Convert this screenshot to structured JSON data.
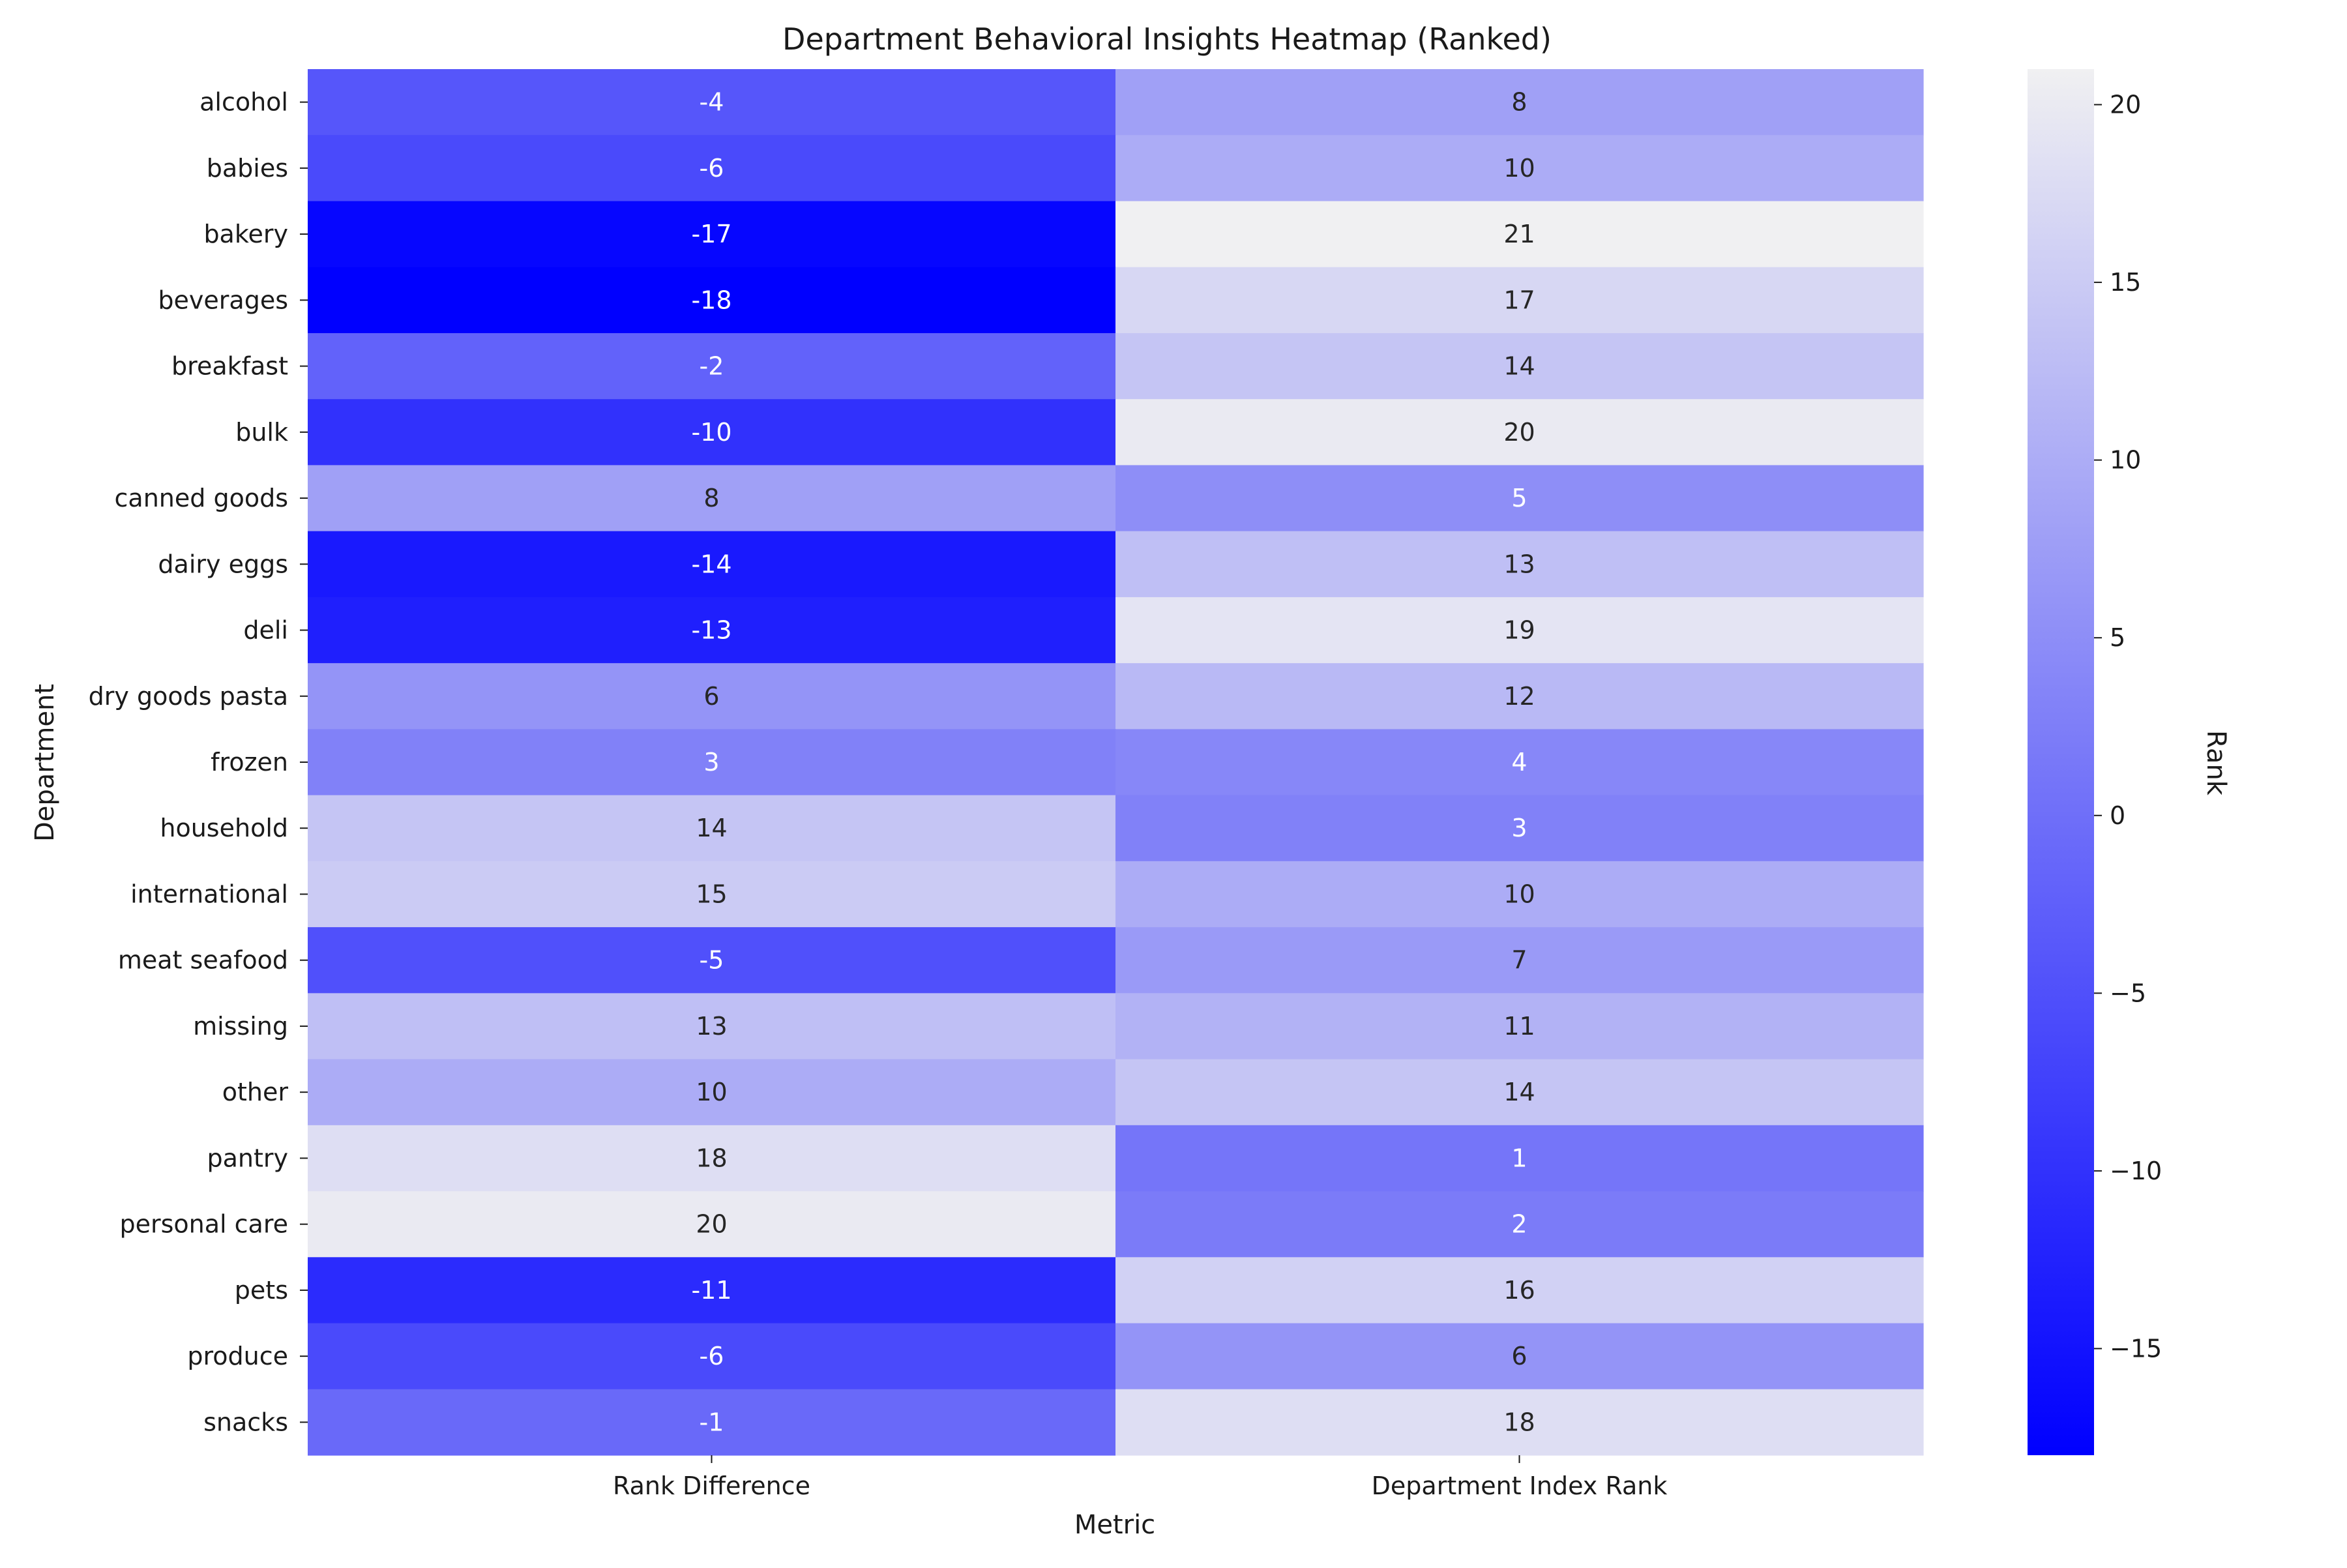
{
  "chart_data": {
    "type": "heatmap",
    "title": "Department Behavioral Insights Heatmap (Ranked)",
    "xlabel": "Metric",
    "ylabel": "Department",
    "columns": [
      "Rank Difference",
      "Department Index Rank"
    ],
    "rows": [
      "alcohol",
      "babies",
      "bakery",
      "beverages",
      "breakfast",
      "bulk",
      "canned goods",
      "dairy eggs",
      "deli",
      "dry goods pasta",
      "frozen",
      "household",
      "international",
      "meat seafood",
      "missing",
      "other",
      "pantry",
      "personal care",
      "pets",
      "produce",
      "snacks"
    ],
    "values": [
      [
        -4,
        8
      ],
      [
        -6,
        10
      ],
      [
        -17,
        21
      ],
      [
        -18,
        17
      ],
      [
        -2,
        14
      ],
      [
        -10,
        20
      ],
      [
        8,
        5
      ],
      [
        -14,
        13
      ],
      [
        -13,
        19
      ],
      [
        6,
        12
      ],
      [
        3,
        4
      ],
      [
        14,
        3
      ],
      [
        15,
        10
      ],
      [
        -5,
        7
      ],
      [
        13,
        11
      ],
      [
        10,
        14
      ],
      [
        18,
        1
      ],
      [
        20,
        2
      ],
      [
        -11,
        16
      ],
      [
        -6,
        6
      ],
      [
        -1,
        18
      ]
    ],
    "colorbar": {
      "label": "Rank",
      "vmin": -18,
      "vmax": 21,
      "ticks": [
        -15,
        -10,
        -5,
        0,
        5,
        10,
        15,
        20
      ],
      "tick_labels": [
        "−15",
        "−10",
        "−5",
        "0",
        "5",
        "10",
        "15",
        "20"
      ],
      "color_low": "#0000ff",
      "color_high": "#f0f0f2"
    },
    "annotations": true,
    "grid": false
  }
}
